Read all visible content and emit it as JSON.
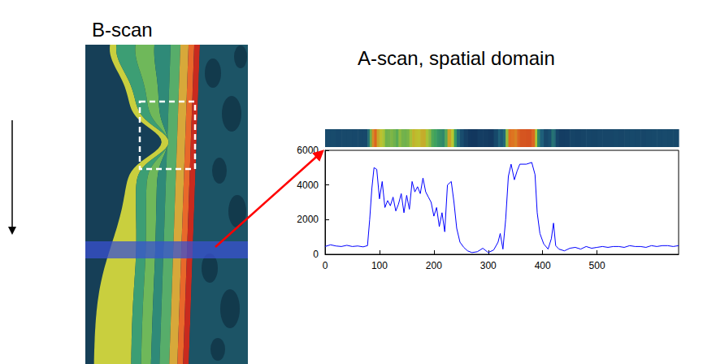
{
  "b_scan": {
    "title": "B-scan"
  },
  "chart_data": {
    "type": "line",
    "title": "A-scan, spatial domain",
    "x": [
      0,
      10,
      20,
      30,
      40,
      50,
      60,
      70,
      78,
      82,
      86,
      90,
      95,
      100,
      105,
      110,
      115,
      120,
      125,
      130,
      135,
      140,
      145,
      150,
      155,
      160,
      165,
      170,
      175,
      180,
      185,
      190,
      195,
      200,
      205,
      210,
      215,
      220,
      225,
      232,
      237,
      242,
      248,
      255,
      262,
      270,
      280,
      290,
      300,
      310,
      318,
      322,
      327,
      332,
      337,
      342,
      348,
      353,
      358,
      370,
      380,
      386,
      390,
      395,
      402,
      410,
      416,
      420,
      424,
      430,
      440,
      450,
      460,
      470,
      480,
      490,
      500,
      510,
      520,
      530,
      540,
      550,
      560,
      570,
      580,
      590,
      600,
      610,
      620,
      630,
      640,
      650
    ],
    "values": [
      450,
      550,
      480,
      450,
      520,
      450,
      480,
      430,
      500,
      2000,
      3800,
      5000,
      4900,
      3200,
      4200,
      2700,
      3100,
      2800,
      3300,
      2500,
      2900,
      3500,
      2400,
      3400,
      2600,
      4200,
      3600,
      3900,
      3500,
      4400,
      3600,
      3300,
      3000,
      2200,
      2700,
      1600,
      2400,
      1300,
      4000,
      4200,
      3000,
      1500,
      700,
      400,
      200,
      100,
      150,
      350,
      100,
      250,
      700,
      1200,
      300,
      2000,
      4500,
      5200,
      4300,
      4800,
      5200,
      5200,
      5300,
      4600,
      2400,
      1200,
      600,
      300,
      900,
      1800,
      500,
      300,
      200,
      350,
      400,
      300,
      450,
      350,
      400,
      450,
      400,
      450,
      450,
      400,
      500,
      450,
      450,
      400,
      500,
      450,
      500,
      500,
      450,
      500
    ],
    "color": "#0000ff",
    "xlim": [
      0,
      650
    ],
    "xticks": [
      0,
      100,
      200,
      300,
      400,
      500
    ],
    "ylim": [
      0,
      6000
    ],
    "yticks": [
      0,
      2000,
      4000,
      6000
    ],
    "grid": false
  }
}
